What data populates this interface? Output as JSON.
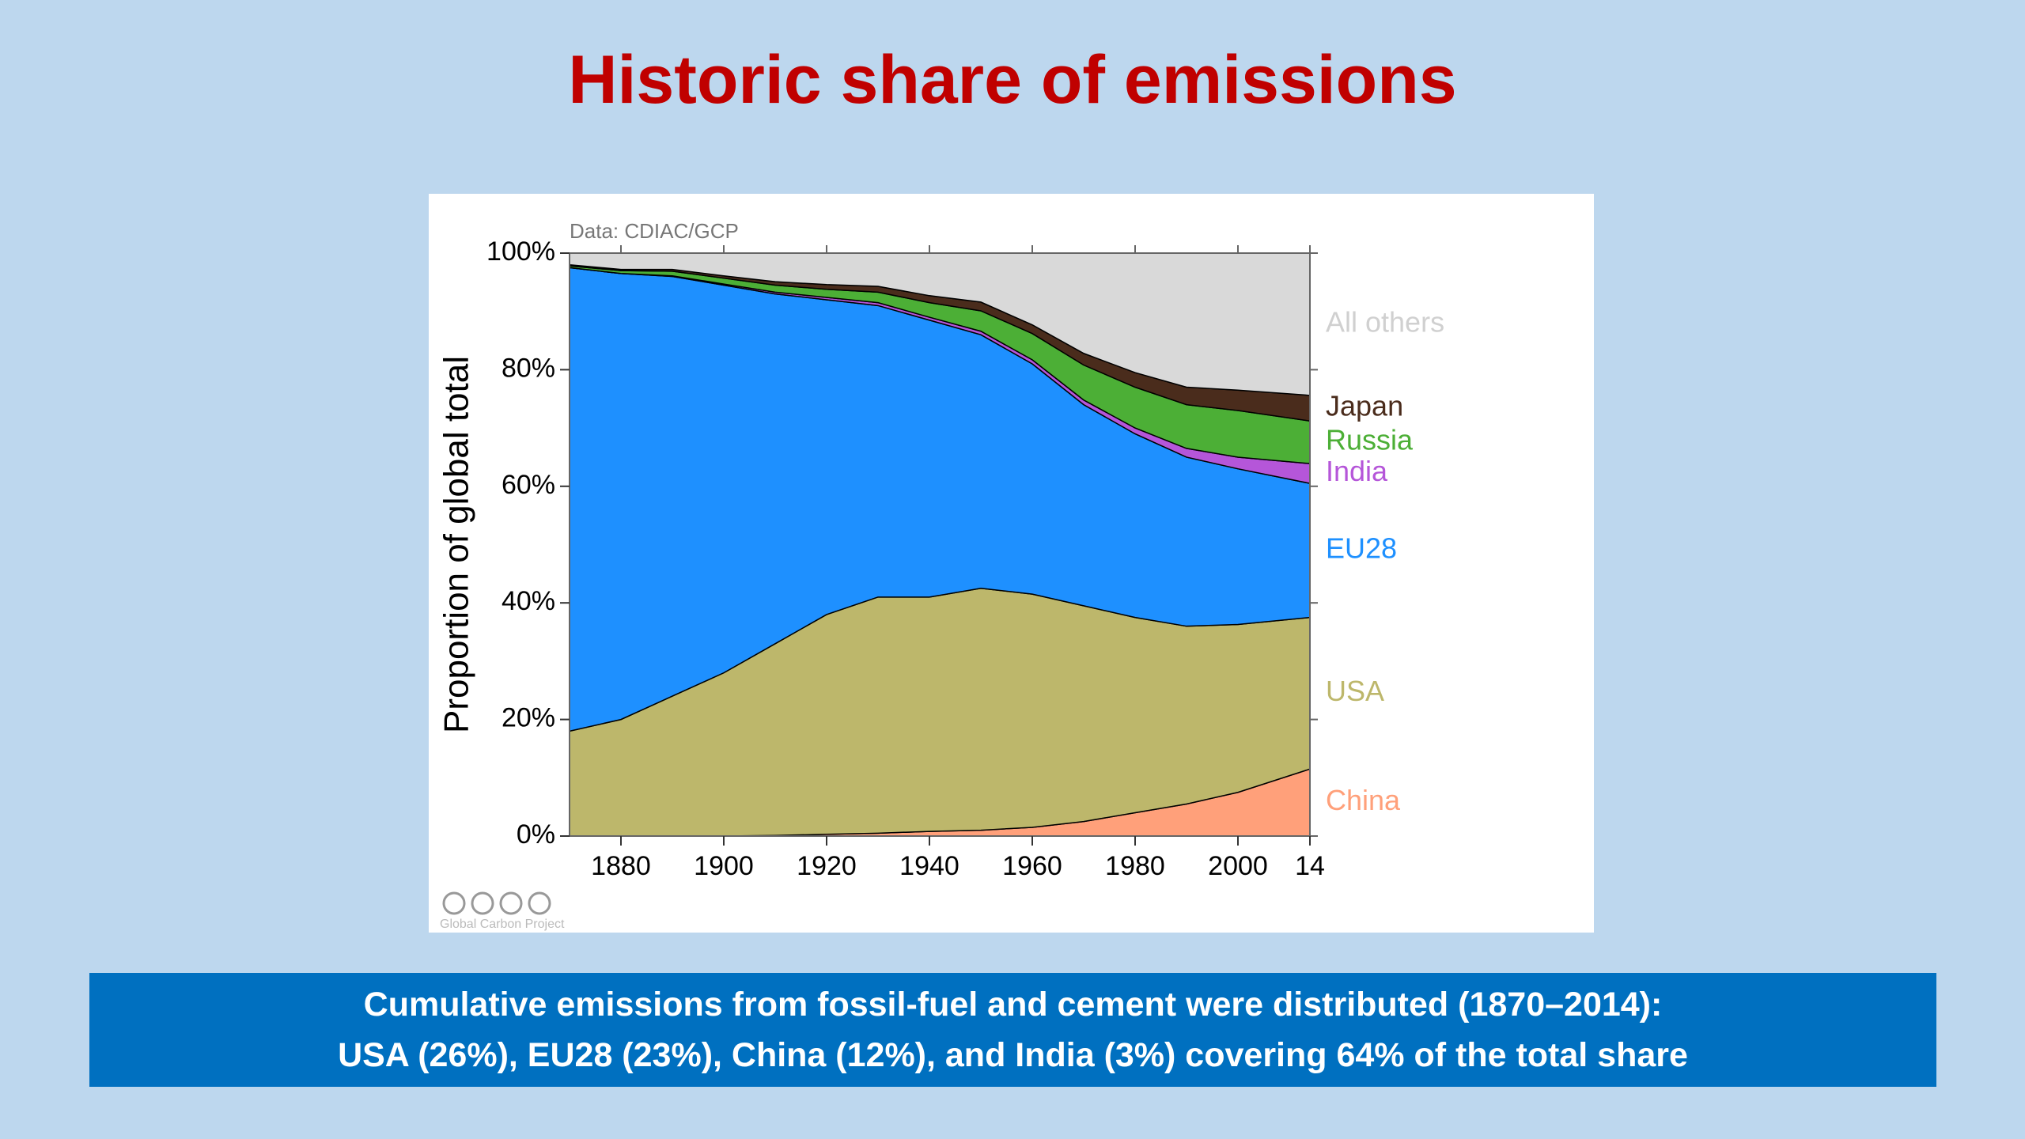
{
  "title": "Historic share of emissions",
  "summary": [
    "Cumulative emissions from fossil-fuel and cement were distributed (1870–2014):",
    "USA (26%), EU28 (23%), China (12%), and India (3%) covering 64% of the total share"
  ],
  "chart_data": {
    "type": "stacked_area",
    "source": "Data: CDIAC/GCP",
    "credit": "Global Carbon Project",
    "y_label": "Proportion of global total",
    "x": [
      1870,
      1880,
      1890,
      1900,
      1910,
      1920,
      1930,
      1940,
      1950,
      1960,
      1970,
      1980,
      1990,
      2000,
      2014
    ],
    "series": [
      {
        "name": "China",
        "color": "#ffa07a",
        "values": [
          0,
          0,
          0,
          0,
          0.1,
          0.3,
          0.5,
          0.8,
          1,
          1.5,
          2.5,
          4,
          5.5,
          7.5,
          11.5
        ]
      },
      {
        "name": "USA",
        "color": "#bdb76b",
        "values": [
          18,
          20,
          24,
          28,
          32.9,
          37.7,
          40.5,
          40.2,
          41.5,
          40,
          37,
          33.5,
          30.5,
          28.8,
          26
        ]
      },
      {
        "name": "EU28",
        "color": "#1e90ff",
        "values": [
          79.5,
          76.5,
          72,
          66.5,
          60,
          54,
          50,
          47.5,
          43.5,
          39.5,
          34.5,
          31.5,
          29,
          26.7,
          23
        ]
      },
      {
        "name": "India",
        "color": "#b556d9",
        "values": [
          0,
          0,
          0.1,
          0.2,
          0.3,
          0.4,
          0.5,
          0.5,
          0.6,
          0.7,
          0.8,
          1,
          1.5,
          2,
          3.4
        ]
      },
      {
        "name": "Russia",
        "color": "#4caf36",
        "values": [
          0.3,
          0.5,
          0.8,
          1,
          1.2,
          1.4,
          1.8,
          2.5,
          3.5,
          4.5,
          6,
          7,
          7.5,
          8,
          7.3
        ]
      },
      {
        "name": "Japan",
        "color": "#4a2c1c",
        "values": [
          0.2,
          0.2,
          0.3,
          0.4,
          0.6,
          0.8,
          1,
          1.2,
          1.5,
          1.5,
          2,
          2.5,
          3,
          3.5,
          4.4
        ]
      },
      {
        "name": "All others",
        "color": "#d9d9d9",
        "values": [
          2,
          2.8,
          2.8,
          3.9,
          4.9,
          5.4,
          5.7,
          7.3,
          8.4,
          12.3,
          17.2,
          20.5,
          23,
          23.5,
          24.4
        ]
      }
    ],
    "label_colors": [
      "#ffa07a",
      "#bdb76b",
      "#1e90ff",
      "#b556d9",
      "#4caf36",
      "#4a2c1c",
      "#d0d0d0"
    ],
    "xlim": [
      1870,
      2014
    ],
    "xticks": [
      1880,
      1900,
      1920,
      1940,
      1960,
      1980,
      2000,
      {
        "value": 2014,
        "label": "14"
      }
    ],
    "ylim": [
      0,
      100
    ],
    "yticks": [
      {
        "value": 0,
        "label": "0%"
      },
      {
        "value": 20,
        "label": "20%"
      },
      {
        "value": 40,
        "label": "40%"
      },
      {
        "value": 60,
        "label": "60%"
      },
      {
        "value": 80,
        "label": "80%"
      },
      {
        "value": 100,
        "label": "100%"
      }
    ]
  }
}
